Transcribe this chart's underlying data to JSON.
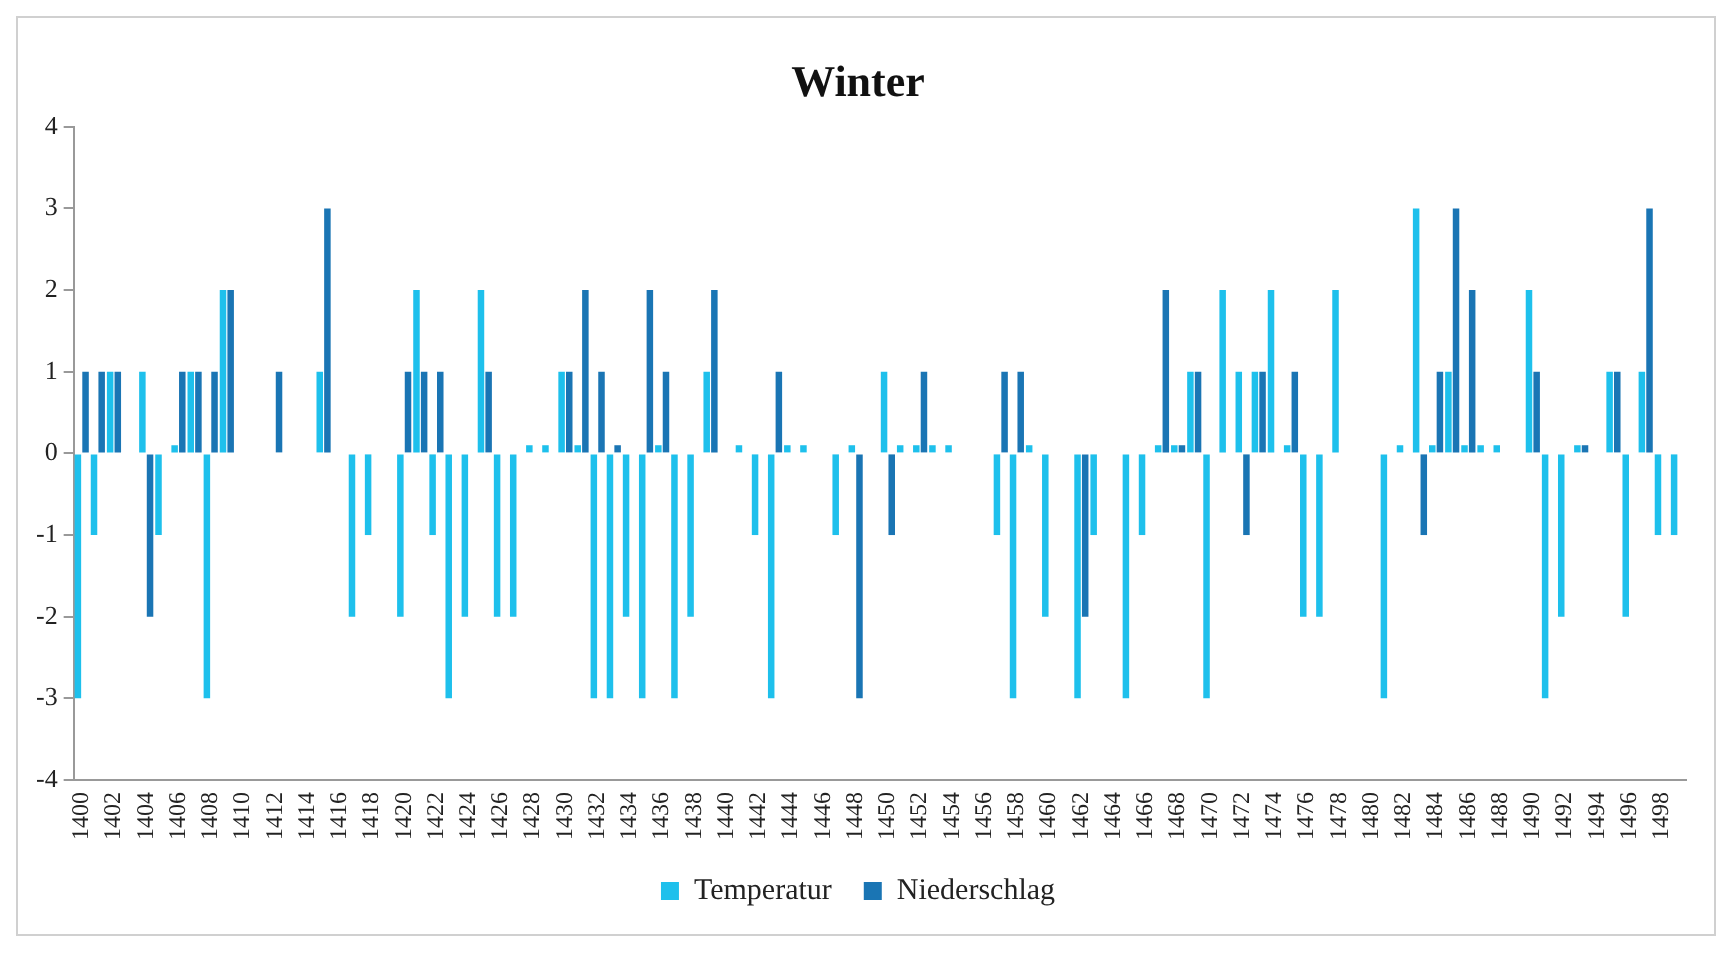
{
  "chart_data": {
    "type": "bar",
    "title": "Winter",
    "categories": [
      "1400",
      null,
      "1402",
      null,
      "1404",
      null,
      "1406",
      null,
      "1408",
      null,
      "1410",
      null,
      "1412",
      null,
      "1414",
      null,
      "1416",
      null,
      "1418",
      null,
      "1420",
      null,
      "1422",
      null,
      "1424",
      null,
      "1426",
      null,
      "1428",
      null,
      "1430",
      null,
      "1432",
      null,
      "1434",
      null,
      "1436",
      null,
      "1438",
      null,
      "1440",
      null,
      "1442",
      null,
      "1444",
      null,
      "1446",
      null,
      "1448",
      null,
      "1450",
      null,
      "1452",
      null,
      "1454",
      null,
      "1456",
      null,
      "1458",
      null,
      "1460",
      null,
      "1462",
      null,
      "1464",
      null,
      "1466",
      null,
      "1468",
      null,
      "1470",
      null,
      "1472",
      null,
      "1474",
      null,
      "1476",
      null,
      "1478",
      null,
      "1480",
      null,
      "1482",
      null,
      "1484",
      null,
      "1486",
      null,
      "1488",
      null,
      "1490",
      null,
      "1492",
      null,
      "1494",
      null,
      "1496",
      null,
      "1498",
      null
    ],
    "series": [
      {
        "name": "Temperatur",
        "color": "#1ec0ec",
        "values": [
          -3,
          -1,
          1,
          0,
          1,
          -1,
          0.1,
          1,
          -3,
          2,
          0,
          0,
          0,
          0,
          0,
          1,
          0,
          -2,
          -1,
          0,
          -2,
          2,
          -1,
          -3,
          -2,
          2,
          -2,
          -2,
          0.1,
          0.1,
          1,
          0.1,
          -3,
          -3,
          -2,
          -3,
          0.1,
          -3,
          -2,
          1,
          0,
          0.1,
          -1,
          -3,
          0.1,
          0.1,
          0,
          -1,
          0.1,
          0,
          1,
          0.1,
          0.1,
          0.1,
          0.1,
          0,
          0,
          -1,
          -3,
          0.1,
          -2,
          0,
          -3,
          -1,
          0,
          -3,
          -1,
          0.1,
          0.1,
          1,
          -3,
          2,
          1,
          1,
          2,
          0.1,
          -2,
          -2,
          2,
          0,
          0,
          -3,
          0.1,
          3,
          0.1,
          1,
          0.1,
          0.1,
          0.1,
          0,
          2,
          -3,
          -2,
          0.1,
          0,
          1,
          -2,
          1,
          -1,
          -1
        ]
      },
      {
        "name": "Niederschlag",
        "color": "#1a75b4",
        "values": [
          1,
          1,
          1,
          0,
          -2,
          0,
          1,
          1,
          1,
          2,
          0,
          0,
          1,
          0,
          0,
          3,
          0,
          0,
          0,
          0,
          1,
          1,
          1,
          0,
          0,
          1,
          0,
          0,
          0,
          0,
          1,
          2,
          1,
          0.1,
          0,
          2,
          1,
          0,
          0,
          2,
          0,
          0,
          0,
          1,
          0,
          0,
          0,
          0,
          -3,
          0,
          -1,
          0,
          1,
          0,
          0,
          0,
          0,
          1,
          1,
          0,
          0,
          0,
          -2,
          0,
          0,
          0,
          0,
          2,
          0.1,
          1,
          0,
          0,
          -1,
          1,
          0,
          1,
          0,
          0,
          0,
          0,
          0,
          0,
          0,
          -1,
          1,
          3,
          2,
          0,
          0,
          0,
          1,
          0,
          0,
          0.1,
          0,
          1,
          0,
          3,
          0,
          0
        ]
      }
    ],
    "ylim": [
      -4,
      4
    ],
    "yticks": [
      -4,
      -3,
      -2,
      -1,
      0,
      1,
      2,
      3,
      4
    ],
    "grid": false,
    "legend": "bottom"
  }
}
